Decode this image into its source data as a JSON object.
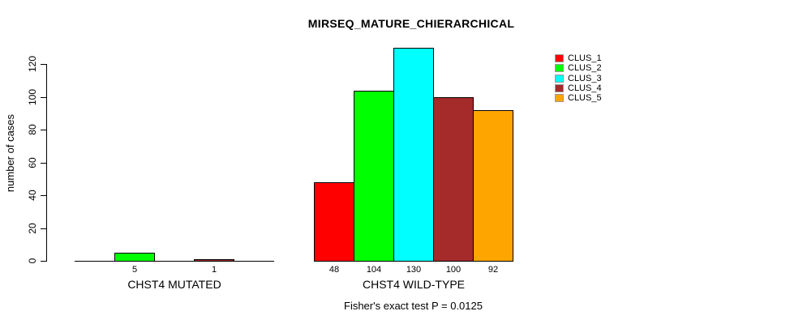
{
  "title": "MIRSEQ_MATURE_CHIERARCHICAL",
  "footnote": "Fisher's exact test P = 0.0125",
  "colors": {
    "background": "#ffffff",
    "axis": "#000000",
    "text": "#000000"
  },
  "chart_data": {
    "type": "bar",
    "title": "MIRSEQ_MATURE_CHIERARCHICAL",
    "xlabel": "",
    "ylabel": "number of cases",
    "ylim": [
      0,
      130
    ],
    "yticks": [
      0,
      20,
      40,
      60,
      80,
      100,
      120
    ],
    "grid": false,
    "legend_position": "right",
    "categories": [
      "CHST4 MUTATED",
      "CHST4 WILD-TYPE"
    ],
    "series": [
      {
        "name": "CLUS_1",
        "color": "#FF0000",
        "values": [
          0,
          48
        ]
      },
      {
        "name": "CLUS_2",
        "color": "#00FF00",
        "values": [
          5,
          104
        ]
      },
      {
        "name": "CLUS_3",
        "color": "#00FFFF",
        "values": [
          0,
          130
        ]
      },
      {
        "name": "CLUS_4",
        "color": "#A52A2A",
        "values": [
          1,
          100
        ]
      },
      {
        "name": "CLUS_5",
        "color": "#FFA500",
        "values": [
          0,
          92
        ]
      }
    ],
    "bar_value_labels": [
      [
        "",
        "5",
        "",
        "1",
        ""
      ],
      [
        "48",
        "104",
        "130",
        "100",
        "92"
      ]
    ],
    "annotation": "Fisher's exact test P = 0.0125"
  }
}
